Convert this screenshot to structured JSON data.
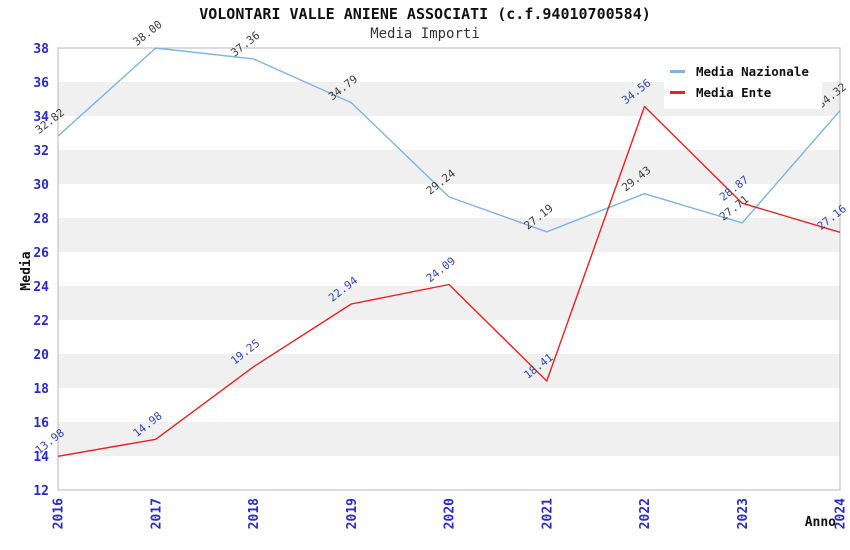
{
  "title": "VOLONTARI VALLE ANIENE ASSOCIATI (c.f.94010700584)",
  "subtitle": "Media Importi",
  "chart_data": {
    "type": "line",
    "categories": [
      "2016",
      "2017",
      "2018",
      "2019",
      "2020",
      "2021",
      "2022",
      "2023",
      "2024"
    ],
    "series": [
      {
        "name": "Media Nazionale",
        "color": "#7fb2e5",
        "label_color": "#3d3d3d",
        "values": [
          32.82,
          38.0,
          37.36,
          34.79,
          29.24,
          27.19,
          29.43,
          27.71,
          34.32
        ]
      },
      {
        "name": "Media Ente",
        "color": "#e62222",
        "label_color": "#3344bb",
        "values": [
          13.98,
          14.98,
          19.25,
          22.94,
          24.09,
          18.41,
          34.56,
          28.87,
          27.16
        ]
      }
    ],
    "xlabel": "Anno",
    "ylabel": "Media",
    "ylim": [
      12,
      38
    ],
    "ytick_step": 2,
    "yticks": [
      12,
      14,
      16,
      18,
      20,
      22,
      24,
      26,
      28,
      30,
      32,
      34,
      36,
      38
    ],
    "tick_label_color": "#2929cc",
    "axis_label_color": "#111111",
    "plot_border_color": "#b9b9b9",
    "band_color": "#f0f0f0",
    "grid_bands": true,
    "legend_position": "top-right",
    "point_labels_visible": true
  }
}
